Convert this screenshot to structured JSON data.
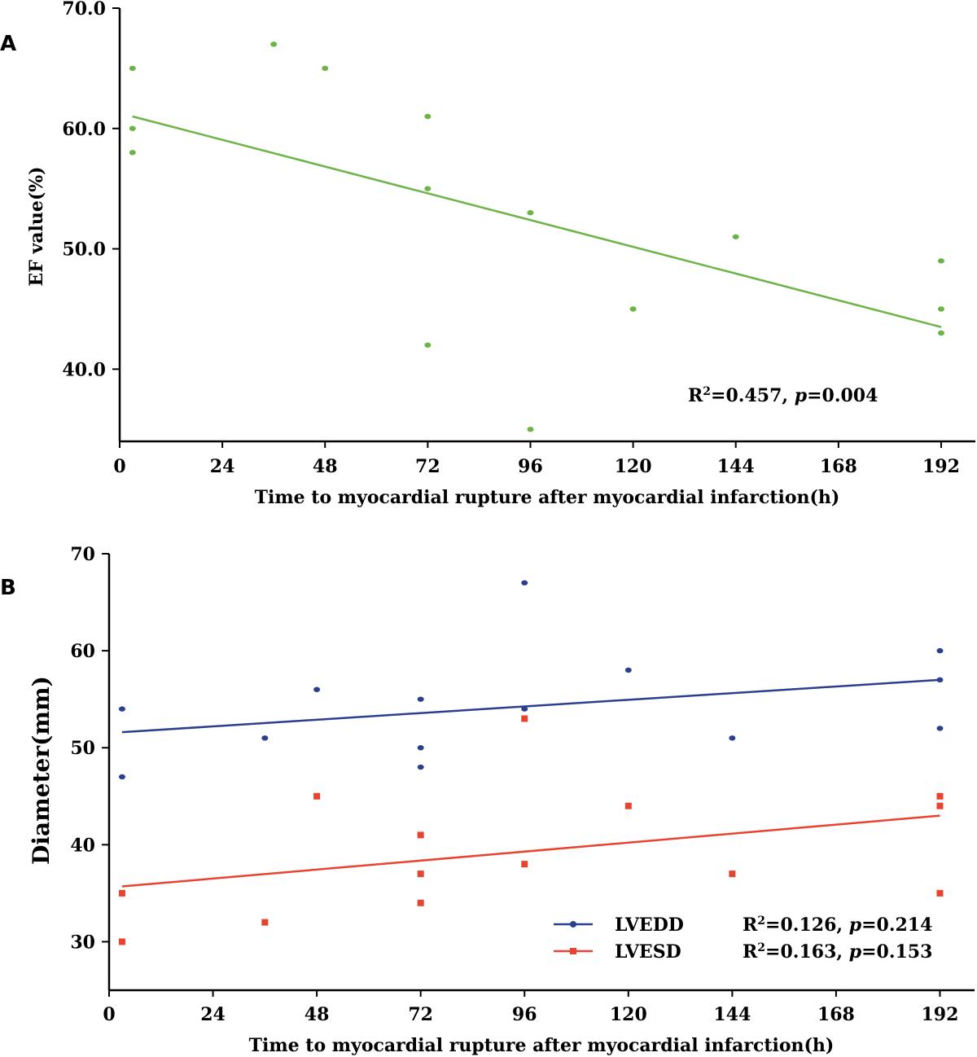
{
  "chart_data": [
    {
      "type": "scatter",
      "panel_label": "A",
      "title": "",
      "xlabel": "Time to myocardial rupture after myocardial infarction(h)",
      "ylabel": "EF value(%)",
      "xlim": [
        0,
        200
      ],
      "ylim": [
        34,
        70
      ],
      "xticks": [
        0,
        24,
        48,
        72,
        96,
        120,
        144,
        168,
        192
      ],
      "yticks": [
        40.0,
        50.0,
        60.0,
        70.0
      ],
      "ytick_labels": [
        "40.0",
        "50.0",
        "60.0",
        "70.0"
      ],
      "grid": false,
      "series": [
        {
          "color": "#6ab545",
          "marker": "circle",
          "points": [
            {
              "x": 3,
              "y": 65
            },
            {
              "x": 3,
              "y": 60
            },
            {
              "x": 3,
              "y": 58
            },
            {
              "x": 36,
              "y": 67
            },
            {
              "x": 48,
              "y": 65
            },
            {
              "x": 72,
              "y": 61
            },
            {
              "x": 72,
              "y": 55
            },
            {
              "x": 72,
              "y": 42
            },
            {
              "x": 96,
              "y": 53
            },
            {
              "x": 96,
              "y": 35
            },
            {
              "x": 120,
              "y": 45
            },
            {
              "x": 144,
              "y": 51
            },
            {
              "x": 192,
              "y": 49
            },
            {
              "x": 192,
              "y": 45
            },
            {
              "x": 192,
              "y": 43
            }
          ],
          "fit_line": {
            "x": [
              3,
              192
            ],
            "y": [
              61.0,
              43.5
            ]
          }
        }
      ],
      "annotation": {
        "r2_prefix": "R",
        "r2_sup": "2",
        "r2_stat": "=0.457, ",
        "p_label": "p",
        "p_stat": "=0.004"
      }
    },
    {
      "type": "scatter",
      "panel_label": "B",
      "title": "",
      "xlabel": "Time to myocardial rupture after myocardial infarction(h)",
      "ylabel": "Diameter(mm)",
      "xlim": [
        0,
        200
      ],
      "ylim": [
        25,
        70
      ],
      "xticks": [
        0,
        24,
        48,
        72,
        96,
        120,
        144,
        168,
        192
      ],
      "yticks": [
        30,
        40,
        50,
        60,
        70
      ],
      "ytick_labels": [
        "30",
        "40",
        "50",
        "60",
        "70"
      ],
      "grid": false,
      "legend_position": "bottom-right",
      "series": [
        {
          "name": "LVEDD",
          "color": "#2b3f8f",
          "marker": "circle",
          "points": [
            {
              "x": 3,
              "y": 54
            },
            {
              "x": 3,
              "y": 47
            },
            {
              "x": 36,
              "y": 51
            },
            {
              "x": 48,
              "y": 56
            },
            {
              "x": 72,
              "y": 55
            },
            {
              "x": 72,
              "y": 50
            },
            {
              "x": 72,
              "y": 48
            },
            {
              "x": 96,
              "y": 67
            },
            {
              "x": 96,
              "y": 54
            },
            {
              "x": 120,
              "y": 58
            },
            {
              "x": 144,
              "y": 51
            },
            {
              "x": 192,
              "y": 60
            },
            {
              "x": 192,
              "y": 57
            },
            {
              "x": 192,
              "y": 52
            }
          ],
          "fit_line": {
            "x": [
              3,
              192
            ],
            "y": [
              51.6,
              57.0
            ]
          },
          "stat": {
            "r2_prefix": "R",
            "r2_sup": "2",
            "r2_stat": "=0.126, ",
            "p_label": "p",
            "p_stat": "=0.214"
          }
        },
        {
          "name": "LVESD",
          "color": "#e8432e",
          "marker": "square",
          "points": [
            {
              "x": 3,
              "y": 35
            },
            {
              "x": 3,
              "y": 30
            },
            {
              "x": 36,
              "y": 32
            },
            {
              "x": 48,
              "y": 45
            },
            {
              "x": 72,
              "y": 41
            },
            {
              "x": 72,
              "y": 37
            },
            {
              "x": 72,
              "y": 34
            },
            {
              "x": 96,
              "y": 53
            },
            {
              "x": 96,
              "y": 38
            },
            {
              "x": 120,
              "y": 44
            },
            {
              "x": 144,
              "y": 37
            },
            {
              "x": 192,
              "y": 45
            },
            {
              "x": 192,
              "y": 44
            },
            {
              "x": 192,
              "y": 35
            }
          ],
          "fit_line": {
            "x": [
              3,
              192
            ],
            "y": [
              35.7,
              43.0
            ]
          },
          "stat": {
            "r2_prefix": "R",
            "r2_sup": "2",
            "r2_stat": "=0.163, ",
            "p_label": "p",
            "p_stat": "=0.153"
          }
        }
      ]
    }
  ]
}
